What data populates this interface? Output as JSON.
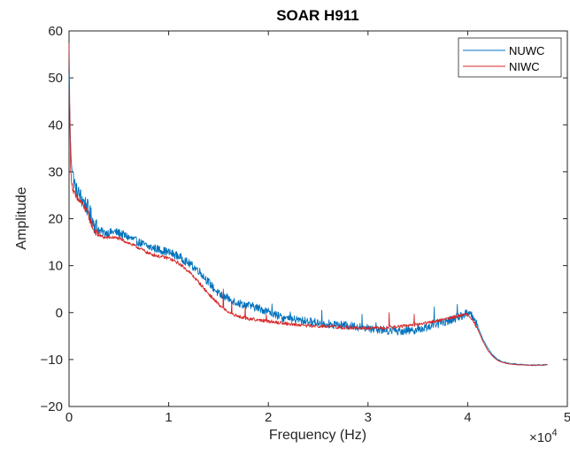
{
  "chart_data": {
    "type": "line",
    "title": "SOAR H911",
    "xlabel": "Frequency (Hz)",
    "ylabel": "Amplitude",
    "x_exponent_label": "×10",
    "x_exponent_power": "4",
    "xlim": [
      0,
      50000
    ],
    "ylim": [
      -20,
      60
    ],
    "x_ticks": [
      0,
      10000,
      20000,
      30000,
      40000,
      50000
    ],
    "x_tick_labels": [
      "0",
      "1",
      "2",
      "3",
      "4",
      "5"
    ],
    "y_ticks": [
      -20,
      -10,
      0,
      10,
      20,
      30,
      40,
      50,
      60
    ],
    "y_tick_labels": [
      "−20",
      "−10",
      "0",
      "10",
      "20",
      "30",
      "40",
      "50",
      "60"
    ],
    "grid": false,
    "legend_position": "top-right",
    "series": [
      {
        "name": "NUWC",
        "color": "#0072bd",
        "noise": 0.9,
        "x": [
          0,
          150,
          400,
          700,
          1200,
          1800,
          2500,
          3000,
          3500,
          4000,
          4500,
          5000,
          6000,
          7000,
          8000,
          9000,
          10000,
          11000,
          12000,
          13000,
          14000,
          15000,
          16000,
          17000,
          18000,
          19000,
          20000,
          21000,
          22000,
          23000,
          24000,
          25000,
          26000,
          27000,
          28000,
          29000,
          30000,
          31000,
          32000,
          33000,
          34000,
          35000,
          36000,
          37000,
          38000,
          39000,
          40000,
          40500,
          41000,
          41500,
          42000,
          42500,
          43000,
          43500,
          44000,
          45000,
          46000,
          47000,
          48000
        ],
        "y": [
          50,
          35,
          29,
          26,
          24.5,
          22.5,
          19,
          17.5,
          17,
          17,
          17.2,
          17,
          16,
          15,
          14,
          13.5,
          12.8,
          12,
          10.5,
          9,
          6.5,
          4,
          3,
          2,
          1.5,
          1,
          0.2,
          -0.8,
          -1.4,
          -1.6,
          -1.9,
          -2.1,
          -2.4,
          -2.6,
          -2.8,
          -3,
          -3.3,
          -3.6,
          -3.8,
          -3.9,
          -3.8,
          -3.6,
          -3,
          -2.4,
          -1.8,
          -1,
          0,
          -0.8,
          -3,
          -5.5,
          -7.5,
          -9,
          -10,
          -10.5,
          -10.8,
          -11,
          -11.2,
          -11.2,
          -11.1
        ]
      },
      {
        "name": "NIWC",
        "color": "#d62728",
        "noise": 0.35,
        "x": [
          0,
          150,
          400,
          700,
          1200,
          1800,
          2500,
          3000,
          3500,
          4000,
          4500,
          5000,
          6000,
          7000,
          8000,
          9000,
          10000,
          11000,
          12000,
          13000,
          14000,
          15000,
          16000,
          17000,
          18000,
          19000,
          20000,
          21000,
          22000,
          23000,
          24000,
          25000,
          26000,
          27000,
          28000,
          29000,
          30000,
          31000,
          32000,
          33000,
          34000,
          35000,
          36000,
          37000,
          38000,
          39000,
          40000,
          40500,
          41000,
          41500,
          42000,
          42500,
          43000,
          43500,
          44000,
          45000,
          46000,
          47000,
          48000
        ],
        "y": [
          57,
          30,
          26,
          24.5,
          23.5,
          21.5,
          17.5,
          16.5,
          16,
          16,
          16,
          15.8,
          14.8,
          13.8,
          12.6,
          12,
          11.6,
          10.5,
          8.8,
          6.5,
          4,
          1.8,
          0,
          -0.8,
          -1.3,
          -1.6,
          -1.8,
          -2.1,
          -2.4,
          -2.6,
          -2.8,
          -2.9,
          -3.0,
          -3.1,
          -3.2,
          -3.3,
          -3.3,
          -3.3,
          -3.2,
          -3.0,
          -2.8,
          -2.5,
          -2.1,
          -1.7,
          -1.3,
          -0.8,
          -0.3,
          -1.5,
          -3.5,
          -6,
          -8,
          -9.3,
          -10.2,
          -10.6,
          -10.9,
          -11.1,
          -11.2,
          -11.2,
          -11.1
        ]
      }
    ]
  }
}
